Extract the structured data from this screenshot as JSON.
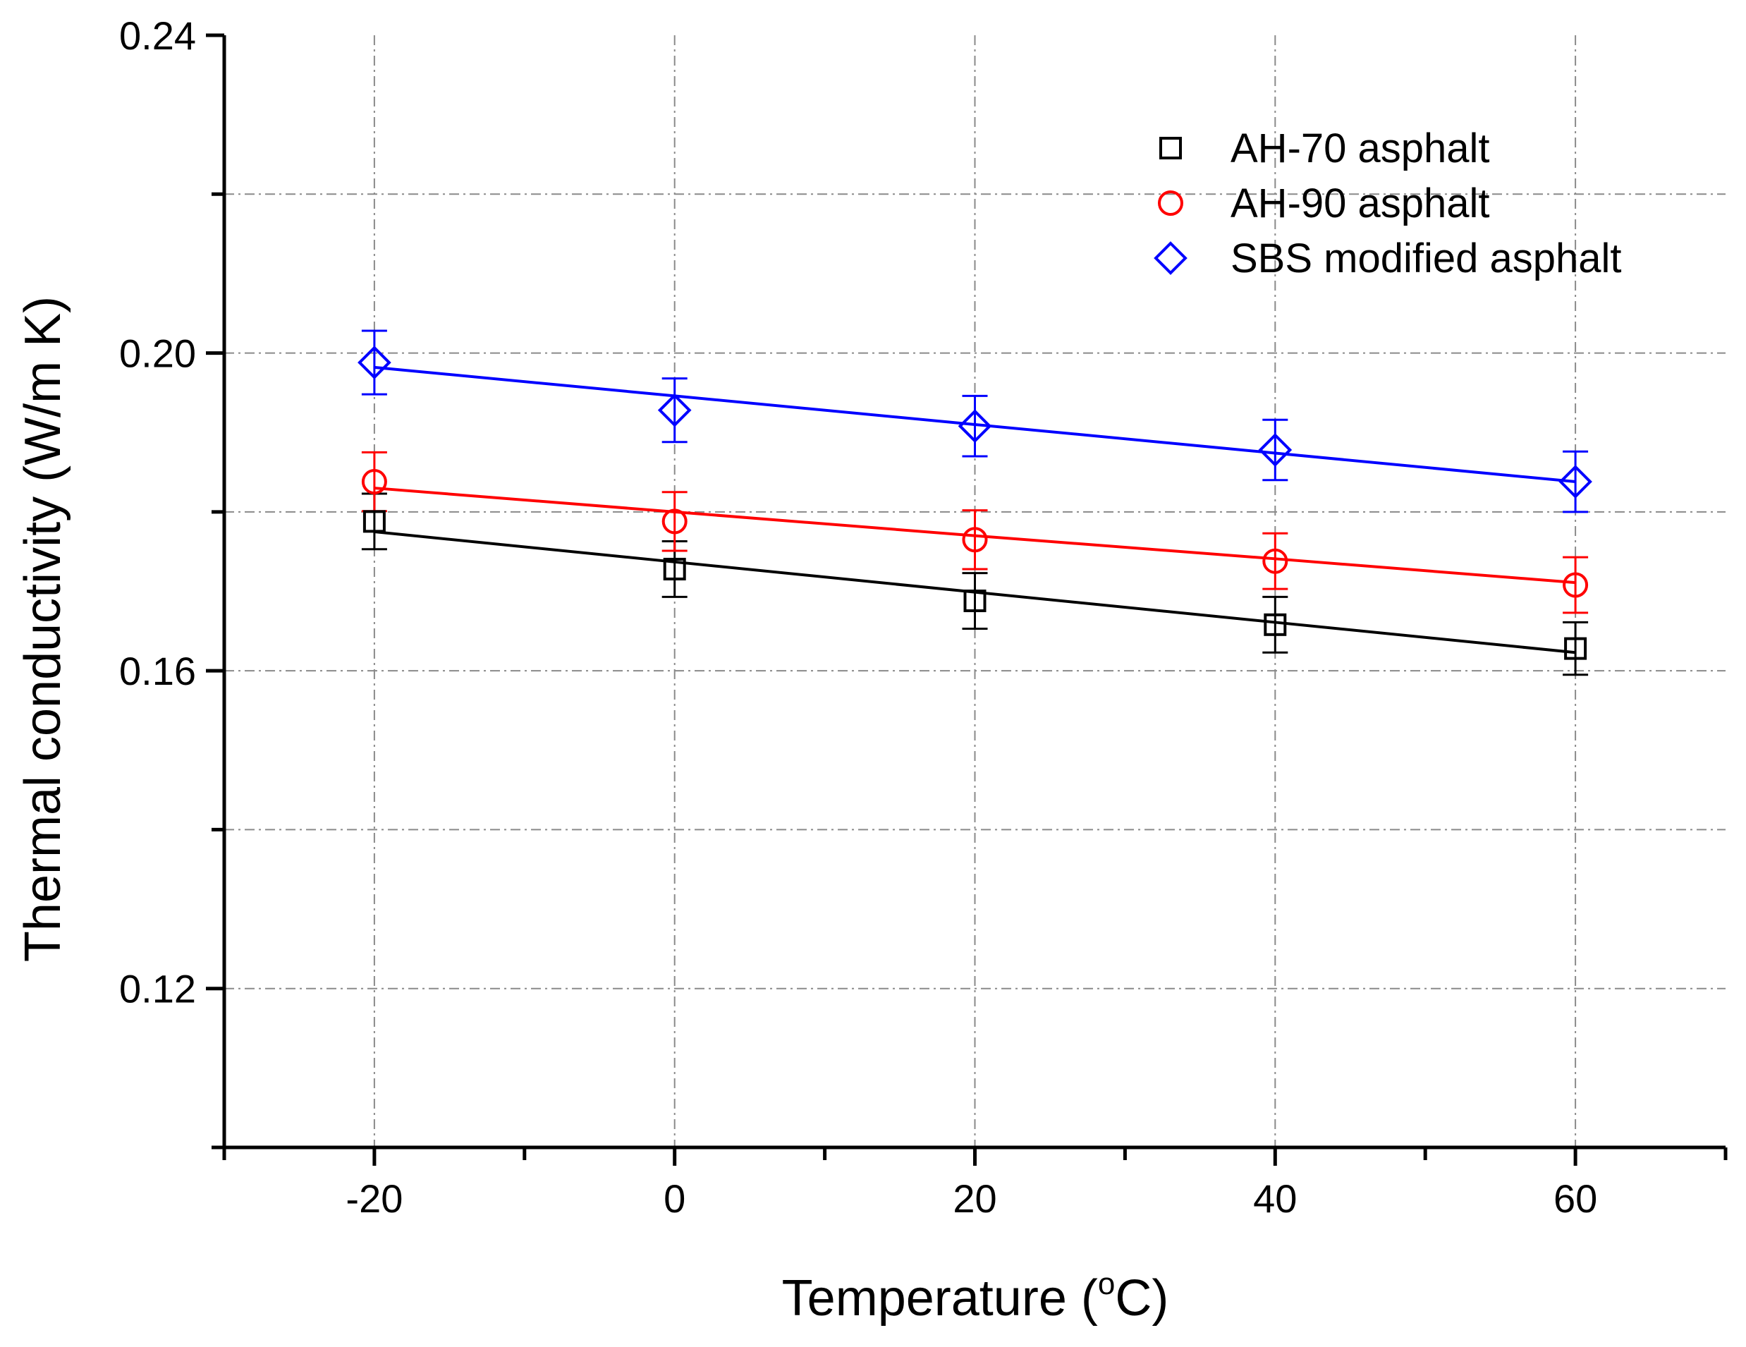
{
  "chart_data": {
    "type": "scatter",
    "title": "",
    "xlabel": "Temperature (",
    "xlabel_unit_sup": "o",
    "xlabel_unit_tail": "C)",
    "ylabel": "Thermal conductivity (W/m K)",
    "xlim": [
      -30,
      70
    ],
    "ylim": [
      0.1,
      0.24
    ],
    "x_ticks": [
      -20,
      0,
      20,
      40,
      60
    ],
    "x_tick_labels": [
      "-20",
      "0",
      "20",
      "40",
      "60"
    ],
    "y_ticks": [
      0.12,
      0.16,
      0.2,
      0.24
    ],
    "y_tick_labels": [
      "0.12",
      "0.16",
      "0.20",
      "0.24"
    ],
    "grid": true,
    "legend_position": "top-right",
    "x": [
      -20,
      0,
      20,
      40,
      60
    ],
    "series": [
      {
        "name": "AH-70 asphalt",
        "marker": "square",
        "color": "#000000",
        "values": [
          0.1788,
          0.1728,
          0.1688,
          0.1658,
          0.1628
        ],
        "errors": [
          0.0035,
          0.0035,
          0.0035,
          0.0035,
          0.0033
        ],
        "fit": [
          0.1775,
          0.1737,
          0.1699,
          0.1661,
          0.1623
        ]
      },
      {
        "name": "AH-90 asphalt",
        "marker": "circle",
        "color": "#ff0000",
        "values": [
          0.1838,
          0.1788,
          0.1765,
          0.1738,
          0.1708
        ],
        "errors": [
          0.0037,
          0.0037,
          0.0037,
          0.0035,
          0.0035
        ],
        "fit": [
          0.183,
          0.18,
          0.177,
          0.1741,
          0.1711
        ]
      },
      {
        "name": "SBS modified asphalt",
        "marker": "diamond",
        "color": "#0000ff",
        "values": [
          0.1988,
          0.1928,
          0.1908,
          0.1878,
          0.1838
        ],
        "errors": [
          0.004,
          0.004,
          0.0038,
          0.0038,
          0.0038
        ],
        "fit": [
          0.1982,
          0.1946,
          0.191,
          0.1874,
          0.1838
        ]
      }
    ]
  }
}
